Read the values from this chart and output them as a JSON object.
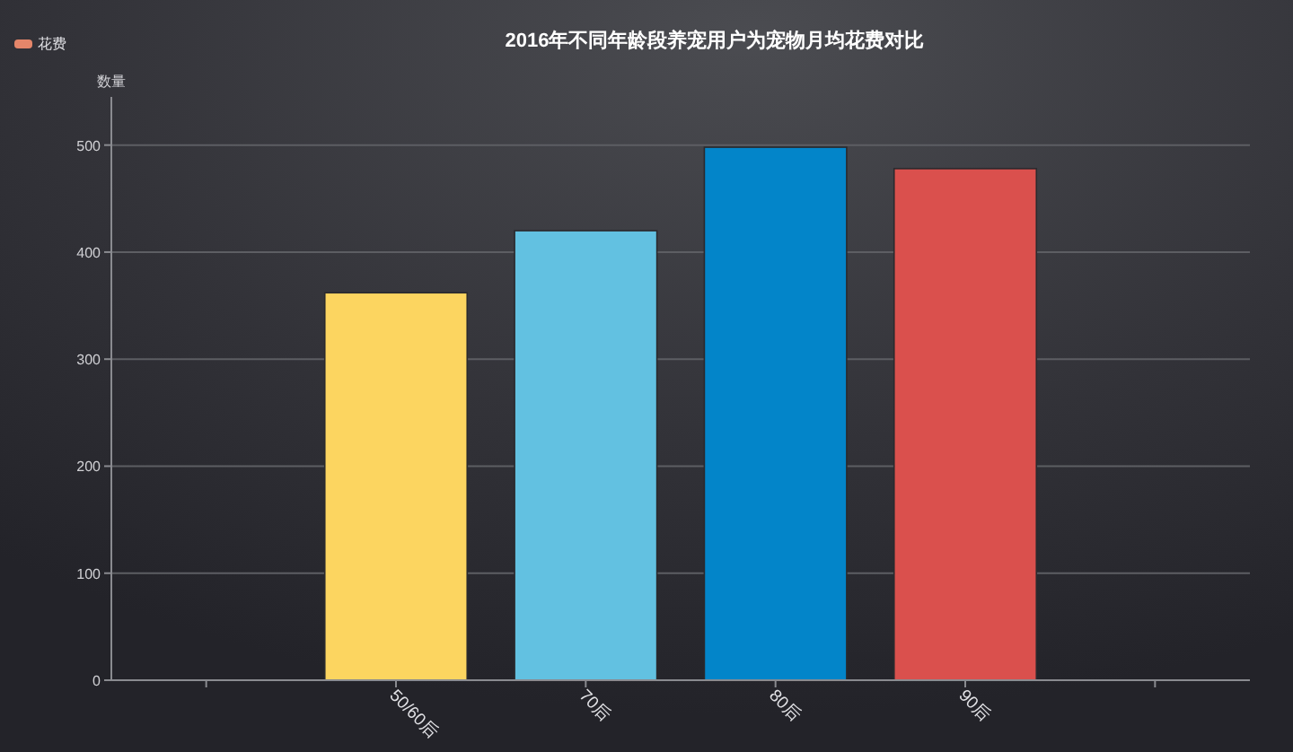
{
  "chart_data": {
    "type": "bar",
    "title": "2016年不同年龄段养宠用户为宠物月均花费对比",
    "ylabel": "数量",
    "categories": [
      null,
      "50/60后",
      "70后",
      "80后",
      "90后",
      null
    ],
    "series": [
      {
        "name": "花费",
        "color": "#e5866a",
        "colors": [
          null,
          "#fcd560",
          "#62c1e1",
          "#0385c9",
          "#da504d",
          null
        ],
        "values": [
          null,
          362,
          420,
          498,
          478,
          null
        ]
      }
    ],
    "ylim": [
      0,
      545
    ],
    "yticks": [
      0,
      100,
      200,
      300,
      400,
      500
    ],
    "grid": "y",
    "legend": "top left"
  }
}
